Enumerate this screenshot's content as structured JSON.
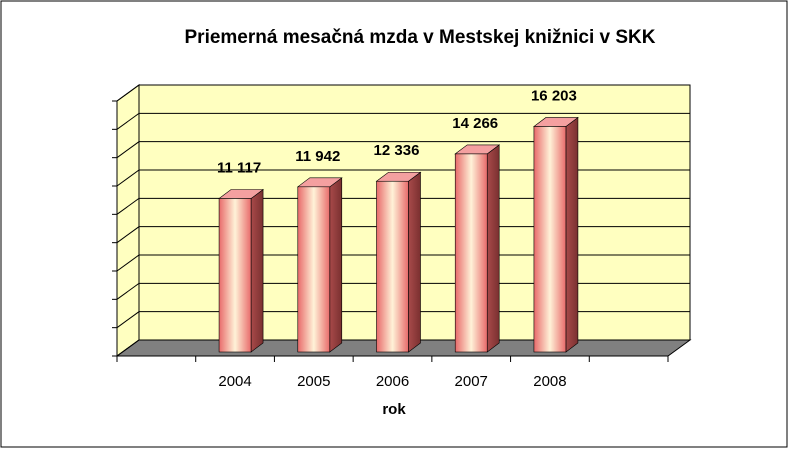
{
  "chart_data": {
    "type": "bar3d",
    "title": "Priemerná mesačná mzda v Mestskej knižnici v SKK",
    "x_label": "rok",
    "categories": [
      null,
      "2004",
      "2005",
      "2006",
      "2007",
      "2008",
      null
    ],
    "values": [
      null,
      11117,
      11942,
      12336,
      14266,
      16203,
      null
    ],
    "value_labels": [
      null,
      "11 117",
      "11 942",
      "12 336",
      "14 266",
      "16 203",
      null
    ],
    "color": "#f08080",
    "ylim": [
      0,
      18000
    ],
    "yticks": [
      0,
      2000,
      4000,
      6000,
      8000,
      10000,
      12000,
      14000,
      16000,
      18000
    ],
    "grid": true
  }
}
